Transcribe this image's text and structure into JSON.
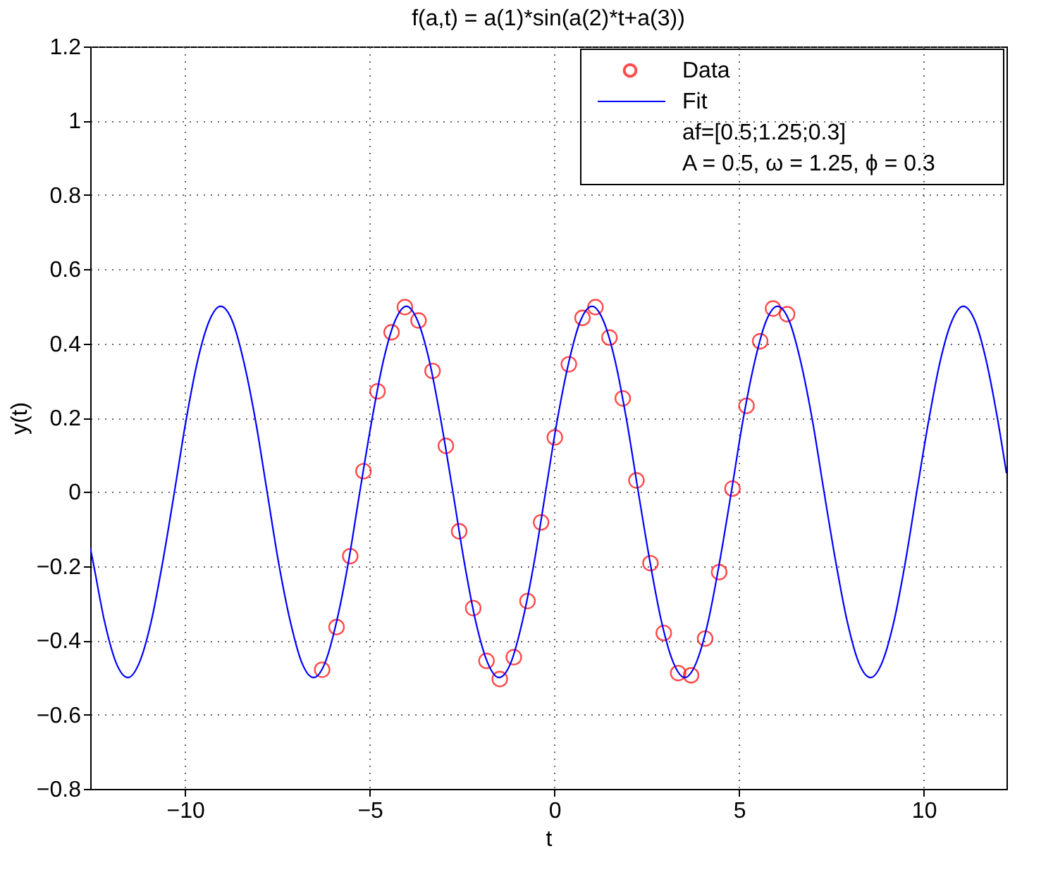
{
  "chart_data": {
    "type": "scatter",
    "title": "f(a,t) = a(1)*sin(a(2)*t+a(3))",
    "xlabel": "t",
    "ylabel": "y(t)",
    "xlim": [
      -12.57,
      12.24
    ],
    "xticks": [
      -10,
      -5,
      0,
      5,
      10
    ],
    "ylim": [
      -0.8,
      1.2
    ],
    "yticks": [
      -0.8,
      -0.6,
      -0.4,
      -0.2,
      0,
      0.2,
      0.4,
      0.6,
      0.8,
      1,
      1.2
    ],
    "grid": true,
    "legend": "top right",
    "annotations": [
      "af=[0.5;1.25;0.3]",
      "A = 0.5, ω = 1.25, ϕ = 0.3"
    ],
    "series": [
      {
        "name": "Data",
        "marker": "circle",
        "color": "#ff0000",
        "x": [
          -6.29,
          -5.9,
          -5.53,
          -5.17,
          -4.79,
          -4.41,
          -4.05,
          -3.68,
          -3.3,
          -2.94,
          -2.58,
          -2.2,
          -1.84,
          -1.48,
          -1.1,
          -0.73,
          -0.36,
          0.01,
          0.39,
          0.76,
          1.11,
          1.49,
          1.85,
          2.22,
          2.6,
          2.96,
          3.35,
          3.7,
          4.08,
          4.46,
          4.82,
          5.2,
          5.57,
          5.92,
          6.3
        ],
        "values": [
          -0.479,
          -0.364,
          -0.173,
          0.056,
          0.271,
          0.43,
          0.498,
          0.462,
          0.326,
          0.124,
          -0.106,
          -0.313,
          -0.455,
          -0.504,
          -0.445,
          -0.294,
          -0.082,
          0.147,
          0.344,
          0.469,
          0.498,
          0.416,
          0.252,
          0.031,
          -0.192,
          -0.38,
          -0.488,
          -0.494,
          -0.395,
          -0.216,
          0.009,
          0.232,
          0.406,
          0.494,
          0.479
        ]
      },
      {
        "name": "Fit",
        "type": "line",
        "line_style": "solid",
        "color": "#0000ff",
        "x": [
          -12.57,
          -12.49,
          -12.18,
          -11.87,
          -11.55,
          -11.24,
          -10.92,
          -10.61,
          -10.29,
          -9.98,
          -9.67,
          -9.35,
          -9.04,
          -8.72,
          -8.41,
          -8.09,
          -7.78,
          -7.47,
          -7.15,
          -6.84,
          -6.52,
          -6.21,
          -5.9,
          -5.58,
          -5.27,
          -4.95,
          -4.64,
          -4.32,
          -4.01,
          -3.7,
          -3.38,
          -3.07,
          -2.75,
          -2.44,
          -2.13,
          -1.81,
          -1.5,
          -1.18,
          -0.87,
          -0.55,
          -0.24,
          0.07,
          0.39,
          0.7,
          1.02,
          1.33,
          1.65,
          1.96,
          2.27,
          2.59,
          2.9,
          3.22,
          3.53,
          3.84,
          4.16,
          4.47,
          4.79,
          5.1,
          5.42,
          5.73,
          6.04,
          6.36,
          6.67,
          6.99,
          7.3,
          7.62,
          7.93,
          8.24,
          8.56,
          8.87,
          9.19,
          9.5,
          9.81,
          10.13,
          10.44,
          10.76,
          11.07,
          11.39,
          11.7,
          12.01,
          12.24
        ],
        "values": [
          -0.15,
          -0.19,
          -0.35,
          -0.46,
          -0.5,
          -0.46,
          -0.35,
          -0.19,
          0,
          0.19,
          0.35,
          0.46,
          0.5,
          0.46,
          0.35,
          0.19,
          0,
          -0.19,
          -0.35,
          -0.46,
          -0.5,
          -0.46,
          -0.35,
          -0.19,
          0,
          0.19,
          0.35,
          0.46,
          0.5,
          0.46,
          0.35,
          0.19,
          0,
          -0.19,
          -0.35,
          -0.46,
          -0.5,
          -0.46,
          -0.35,
          -0.19,
          0,
          0.19,
          0.35,
          0.46,
          0.5,
          0.46,
          0.35,
          0.19,
          0,
          -0.19,
          -0.35,
          -0.46,
          -0.5,
          -0.46,
          -0.35,
          -0.19,
          0,
          0.19,
          0.35,
          0.46,
          0.5,
          0.46,
          0.35,
          0.19,
          0,
          -0.19,
          -0.35,
          -0.46,
          -0.5,
          -0.46,
          -0.35,
          -0.19,
          0,
          0.19,
          0.35,
          0.46,
          0.5,
          0.46,
          0.35,
          0.19,
          0.05
        ]
      }
    ]
  }
}
